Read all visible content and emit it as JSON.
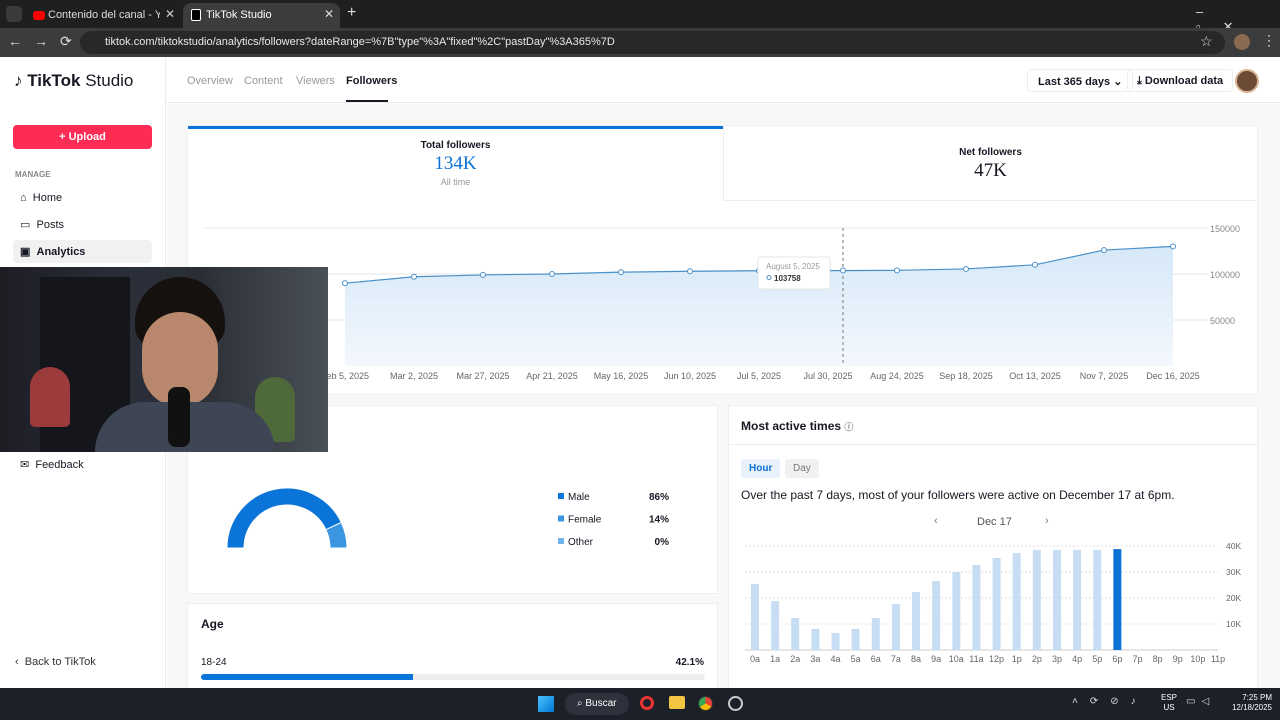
{
  "browser": {
    "tabs": [
      "Contenido del canal - YouTube",
      "TikTok Studio"
    ],
    "url": "tiktok.com/tiktokstudio/analytics/followers?dateRange=%7B\"type\"%3A\"fixed\"%2C\"pastDay\"%3A365%7D"
  },
  "sidebar": {
    "logo": "TikTok",
    "logo_suffix": "Studio",
    "upload": "Upload",
    "section": "MANAGE",
    "items": [
      "Home",
      "Posts",
      "Analytics",
      "Feedback"
    ],
    "back": "Back to TikTok"
  },
  "header": {
    "tabs": [
      "Overview",
      "Content",
      "Viewers",
      "Followers"
    ],
    "range": "Last 365 days",
    "download": "Download data"
  },
  "summary": {
    "total": {
      "label": "Total followers",
      "value": "134K",
      "note": "All time"
    },
    "net": {
      "label": "Net followers",
      "value": "47K"
    }
  },
  "followers_chart": {
    "type": "line",
    "categories": [
      "Feb 5, 2025",
      "Mar 2, 2025",
      "Mar 27, 2025",
      "Apr 21, 2025",
      "May 16, 2025",
      "Jun 10, 2025",
      "Jul 5, 2025",
      "Jul 30, 2025",
      "Aug 24, 2025",
      "Sep 18, 2025",
      "Oct 13, 2025",
      "Nov 7, 2025",
      "Dec 16, 2025"
    ],
    "values": [
      90000,
      97000,
      99000,
      100000,
      102000,
      103000,
      103500,
      103700,
      104000,
      105500,
      110000,
      126000,
      130000
    ],
    "color": "#4a90c8",
    "ylim": [
      0,
      150000
    ],
    "yticks": [
      50000,
      100000,
      150000
    ],
    "grid": true,
    "tooltip": {
      "label": "August 5, 2025",
      "value": 103758
    }
  },
  "gender": {
    "type": "pie",
    "categories": [
      "Male",
      "Female",
      "Other"
    ],
    "values": [
      86,
      14,
      0
    ],
    "value_labels": [
      "86%",
      "14%",
      "0%"
    ],
    "colors": [
      "#0b74d8",
      "#3b96e2",
      "#6fb3ec"
    ]
  },
  "age": {
    "title": "Age",
    "type": "bar",
    "categories": [
      "18-24"
    ],
    "values": [
      42.1
    ],
    "value_labels": [
      "42.1%"
    ],
    "color": "#0b74d8"
  },
  "active_times": {
    "title": "Most active times",
    "toggle": [
      "Hour",
      "Day"
    ],
    "summary": "Over the past 7 days, most of your followers were active on December 17 at 6pm.",
    "date": "Dec 17",
    "chart": {
      "type": "bar",
      "categories": [
        "0a",
        "1a",
        "2a",
        "3a",
        "4a",
        "5a",
        "6a",
        "7a",
        "8a",
        "9a",
        "10a",
        "11a",
        "12p",
        "1p",
        "2p",
        "3p",
        "4p",
        "5p",
        "6p",
        "7p",
        "8p",
        "9p",
        "10p",
        "11p"
      ],
      "values": [
        25400,
        18800,
        12300,
        8100,
        6500,
        8100,
        12300,
        17700,
        22300,
        26500,
        30000,
        32700,
        35400,
        37300,
        38500,
        38500,
        38500,
        38500,
        38800,
        null,
        null,
        null,
        null,
        null
      ],
      "colors": [
        "#c6ddf3",
        "#c6ddf3",
        "#c6ddf3",
        "#c6ddf3",
        "#c6ddf3",
        "#c6ddf3",
        "#c6ddf3",
        "#c6ddf3",
        "#c6ddf3",
        "#c6ddf3",
        "#c6ddf3",
        "#c6ddf3",
        "#c6ddf3",
        "#c6ddf3",
        "#c6ddf3",
        "#c6ddf3",
        "#c6ddf3",
        "#c6ddf3",
        "#0b72d6",
        "#c6ddf3",
        "#c6ddf3",
        "#c6ddf3",
        "#c6ddf3",
        "#c6ddf3"
      ],
      "ylim": [
        0,
        40000
      ],
      "yticks": [
        {
          "value": 10000,
          "label": "10K"
        },
        {
          "value": 20000,
          "label": "20K"
        },
        {
          "value": 30000,
          "label": "30K"
        },
        {
          "value": 40000,
          "label": "40K"
        }
      ],
      "grid": true
    }
  },
  "taskbar": {
    "search": "Buscar",
    "lang": "ESP",
    "region": "US",
    "time": "7:25 PM",
    "date": "12/18/2025"
  }
}
